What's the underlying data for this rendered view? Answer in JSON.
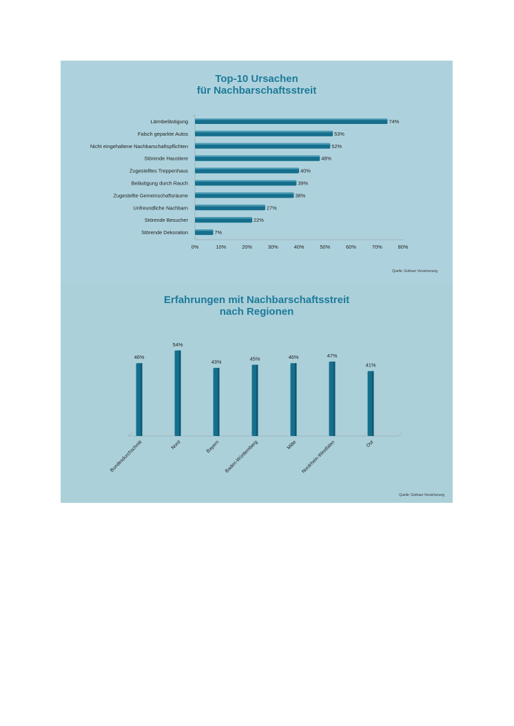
{
  "chart_data": [
    {
      "type": "bar",
      "orientation": "horizontal",
      "title": [
        "Top-10 Ursachen",
        "für Nachbarschaftsstreit"
      ],
      "categories": [
        "Lärmbelästigung",
        "Falsch geparkte Autos",
        "Nicht eingehaltene Nachbarschaftspflichten",
        "Störende Haustiere",
        "Zugestelltes Treppenhaus",
        "Belästigung durch Rauch",
        "Zugestellte Gemeinschaftsräume",
        "Unfreundliche Nachbarn",
        "Störende Besucher",
        "Störende Dekoration"
      ],
      "values": [
        74,
        53,
        52,
        48,
        40,
        39,
        38,
        27,
        22,
        7
      ],
      "value_labels": [
        "74%",
        "53%",
        "52%",
        "48%",
        "40%",
        "39%",
        "38%",
        "27%",
        "22%",
        "7%"
      ],
      "xticks": [
        "0%",
        "10%",
        "20%",
        "30%",
        "40%",
        "50%",
        "60%",
        "70%",
        "80%"
      ],
      "xlim": [
        0,
        80
      ],
      "source": "Quelle: Gothaer Versicherung",
      "bar_color": "#156f8c",
      "grid": false
    },
    {
      "type": "bar",
      "orientation": "vertical",
      "title": [
        "Erfahrungen mit Nachbarschaftsstreit",
        "nach Regionen"
      ],
      "categories": [
        "Bundesdurchschnitt",
        "Nord",
        "Bayern",
        "Baden-Württemberg",
        "Mitte",
        "Nordrhein-Westfalen",
        "Ost"
      ],
      "values": [
        46,
        54,
        43,
        45,
        46,
        47,
        41
      ],
      "value_labels": [
        "46%",
        "54%",
        "43%",
        "45%",
        "46%",
        "47%",
        "41%"
      ],
      "ylim": [
        0,
        60
      ],
      "source": "Quelle: Gothaer Versicherung",
      "bar_color": "#156f8c",
      "grid": false
    }
  ]
}
